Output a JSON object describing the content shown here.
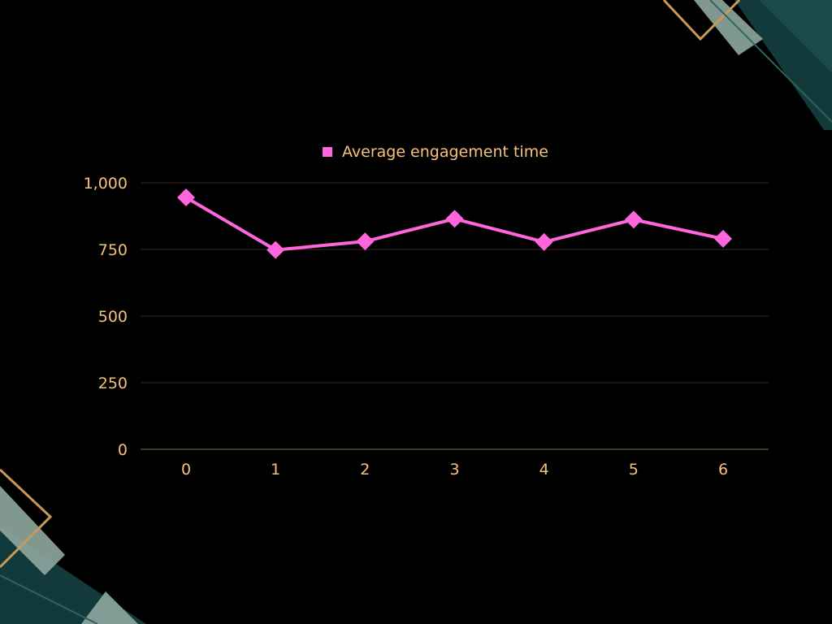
{
  "colors": {
    "background": "#000000",
    "text": "#F5C27A",
    "series": "#FF66DD",
    "gridline": "#3A2A1F",
    "axis": "#8A6A4A",
    "deco_teal_dark": "#123A3A",
    "deco_sage": "#8FA8A0",
    "deco_gold": "#C89A5A"
  },
  "chart_data": {
    "type": "line",
    "x": [
      0,
      1,
      2,
      3,
      4,
      5,
      6
    ],
    "series": [
      {
        "name": "Average engagement time",
        "values": [
          945,
          748,
          780,
          865,
          778,
          862,
          790
        ],
        "marker": "diamond"
      }
    ],
    "ylim": [
      0,
      1000
    ],
    "yticks": [
      0,
      250,
      500,
      750,
      1000
    ],
    "ytick_labels": [
      "0",
      "250",
      "500",
      "750",
      "1,000"
    ],
    "xtick_labels": [
      "0",
      "1",
      "2",
      "3",
      "4",
      "5",
      "6"
    ],
    "grid": true,
    "legend_position": "top-center"
  }
}
